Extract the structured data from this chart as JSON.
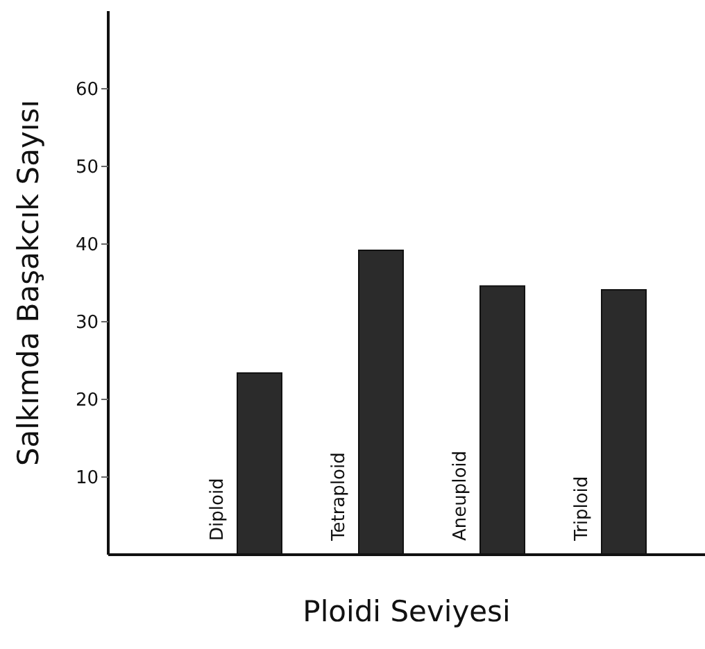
{
  "chart_data": {
    "type": "bar",
    "xlabel": "Ploidi Seviyesi",
    "ylabel": "Salkımda Başakcık Sayısı",
    "categories": [
      "Diploid",
      "Tetraploid",
      "Aneuploid",
      "Triploid"
    ],
    "values": [
      23.4,
      39.2,
      34.6,
      34.1
    ],
    "color": "#2b2b2b",
    "ylim": [
      0,
      70
    ],
    "yticks": [
      10,
      20,
      30,
      40,
      50,
      60
    ],
    "grid": false,
    "legend": false
  }
}
